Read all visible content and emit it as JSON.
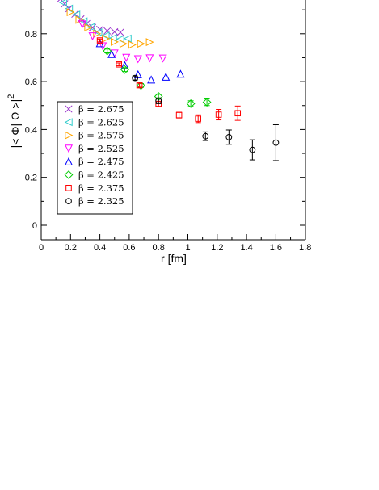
{
  "chart_data": {
    "type": "scatter",
    "xlabel": "r [fm]",
    "ylabel": "|< Φ| Ω >|",
    "ylabel_superscript": "2",
    "xlim": [
      0,
      1.8
    ],
    "ylim": [
      -0.03,
      1.0
    ],
    "x_ticks": [
      0,
      0.2,
      0.4,
      0.6,
      0.8,
      1,
      1.2,
      1.4,
      1.6,
      1.8
    ],
    "x_tick_labels": [
      "0",
      "0.2",
      "0.4",
      "0.6",
      "0.8",
      "1",
      "1.2",
      "1.4",
      "1.6",
      "1.8"
    ],
    "y_ticks": [
      0,
      0.2,
      0.4,
      0.6,
      0.8
    ],
    "y_tick_labels": [
      "0",
      "0.2",
      "0.4",
      "0.6",
      "0.8"
    ],
    "legend_position": "bottom-left",
    "series": [
      {
        "name": "β = 2.675",
        "marker": "x",
        "color": "#9a33cc",
        "x": [
          0.1,
          0.13,
          0.16,
          0.19,
          0.23,
          0.27,
          0.31,
          0.35,
          0.4,
          0.45,
          0.5,
          0.54
        ],
        "y": [
          0.965,
          0.945,
          0.925,
          0.905,
          0.882,
          0.862,
          0.842,
          0.826,
          0.818,
          0.812,
          0.808,
          0.806
        ],
        "err": []
      },
      {
        "name": "β = 2.625",
        "marker": "triangle-left",
        "color": "#33cccc",
        "x": [
          0.15,
          0.19,
          0.24,
          0.29,
          0.34,
          0.39,
          0.44,
          0.49,
          0.54,
          0.59
        ],
        "y": [
          0.93,
          0.905,
          0.88,
          0.852,
          0.828,
          0.806,
          0.792,
          0.782,
          0.778,
          0.78
        ],
        "err": []
      },
      {
        "name": "β = 2.575",
        "marker": "triangle-right",
        "color": "#ffa500",
        "x": [
          0.2,
          0.26,
          0.32,
          0.38,
          0.44,
          0.5,
          0.56,
          0.62,
          0.68,
          0.74
        ],
        "y": [
          0.89,
          0.858,
          0.826,
          0.8,
          0.78,
          0.766,
          0.758,
          0.754,
          0.758,
          0.765
        ],
        "err": []
      },
      {
        "name": "β = 2.525",
        "marker": "triangle-down",
        "color": "#ff00ff",
        "x": [
          0.28,
          0.35,
          0.42,
          0.5,
          0.58,
          0.66,
          0.74,
          0.83
        ],
        "y": [
          0.84,
          0.79,
          0.748,
          0.718,
          0.7,
          0.694,
          0.698,
          0.697
        ],
        "err": []
      },
      {
        "name": "β = 2.475",
        "marker": "triangle-up",
        "color": "#0000ff",
        "x": [
          0.4,
          0.48,
          0.57,
          0.66,
          0.75,
          0.85,
          0.95
        ],
        "y": [
          0.76,
          0.715,
          0.668,
          0.63,
          0.608,
          0.62,
          0.632
        ],
        "err": []
      },
      {
        "name": "β = 2.425",
        "marker": "diamond",
        "color": "#00cc00",
        "x": [
          0.45,
          0.57,
          0.68,
          0.8,
          1.02,
          1.13
        ],
        "y": [
          0.728,
          0.65,
          0.584,
          0.538,
          0.508,
          0.514
        ],
        "err": [
          0.008,
          0.008,
          0.008,
          0.009,
          0.012,
          0.014
        ]
      },
      {
        "name": "β = 2.375",
        "marker": "square",
        "color": "#ff0000",
        "x": [
          0.4,
          0.53,
          0.67,
          0.8,
          0.94,
          1.07,
          1.21,
          1.34
        ],
        "y": [
          0.772,
          0.672,
          0.585,
          0.507,
          0.46,
          0.445,
          0.462,
          0.468
        ],
        "err": [
          0.006,
          0.006,
          0.008,
          0.01,
          0.012,
          0.016,
          0.022,
          0.03
        ]
      },
      {
        "name": "β = 2.325",
        "marker": "circle",
        "color": "#000000",
        "x": [
          0.64,
          0.8,
          1.12,
          1.28,
          1.44,
          1.6
        ],
        "y": [
          0.615,
          0.52,
          0.372,
          0.368,
          0.315,
          0.345
        ],
        "err": [
          0.008,
          0.012,
          0.018,
          0.03,
          0.042,
          0.075
        ]
      }
    ]
  }
}
